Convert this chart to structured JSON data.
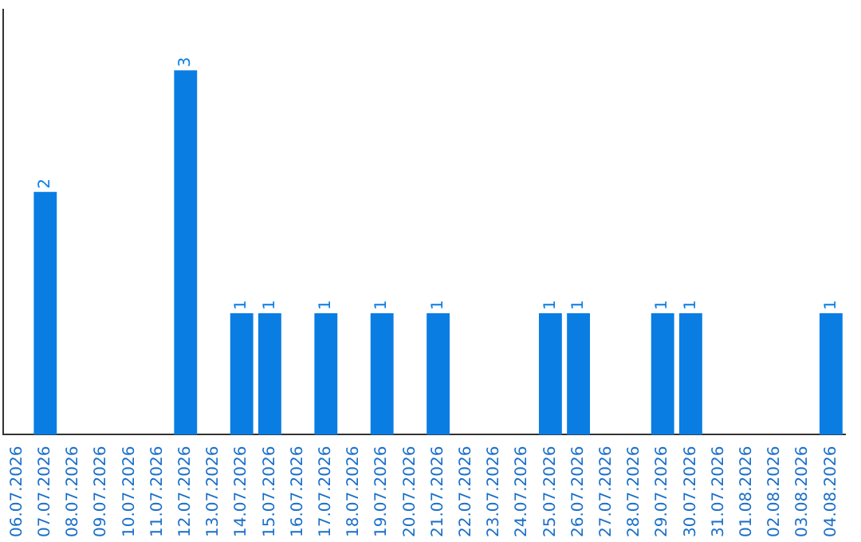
{
  "chart_data": {
    "type": "bar",
    "categories": [
      "06.07.2026",
      "07.07.2026",
      "08.07.2026",
      "09.07.2026",
      "10.07.2026",
      "11.07.2026",
      "12.07.2026",
      "13.07.2026",
      "14.07.2026",
      "15.07.2026",
      "16.07.2026",
      "17.07.2026",
      "18.07.2026",
      "19.07.2026",
      "20.07.2026",
      "21.07.2026",
      "22.07.2026",
      "23.07.2026",
      "24.07.2026",
      "25.07.2026",
      "26.07.2026",
      "27.07.2026",
      "28.07.2026",
      "29.07.2026",
      "30.07.2026",
      "31.07.2026",
      "01.08.2026",
      "02.08.2026",
      "03.08.2026",
      "04.08.2026"
    ],
    "values": [
      0,
      2,
      0,
      0,
      0,
      0,
      3,
      0,
      1,
      1,
      0,
      1,
      0,
      1,
      0,
      1,
      0,
      0,
      0,
      1,
      1,
      0,
      0,
      1,
      1,
      0,
      0,
      0,
      0,
      1
    ],
    "value_labels": [
      null,
      "2",
      null,
      null,
      null,
      null,
      "3",
      null,
      "1",
      "1",
      null,
      "1",
      null,
      "1",
      null,
      "1",
      null,
      null,
      null,
      "1",
      "1",
      null,
      null,
      "1",
      "1",
      null,
      null,
      null,
      null,
      "1"
    ],
    "color": "#0a7de3",
    "tick_labels": "x",
    "grid": false,
    "legend": false
  }
}
